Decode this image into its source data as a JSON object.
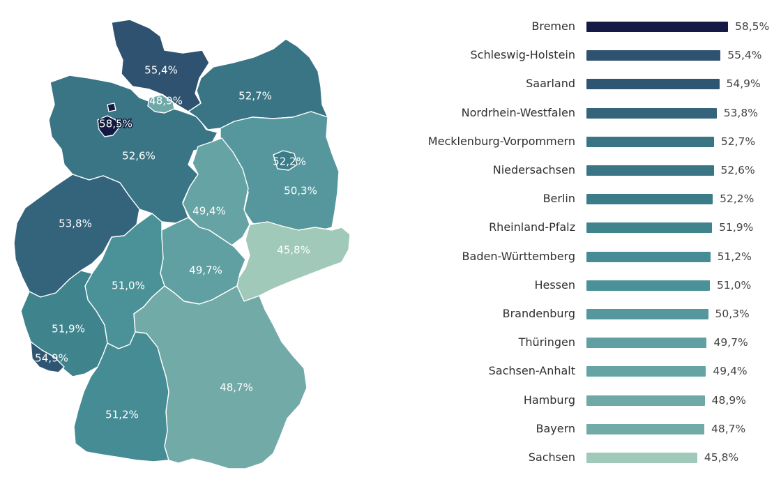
{
  "chart_data": {
    "type": "bar",
    "orientation": "horizontal",
    "categories": [
      "Bremen",
      "Schleswig-Holstein",
      "Saarland",
      "Nordrhein-Westfalen",
      "Mecklenburg-Vorpommern",
      "Niedersachsen",
      "Berlin",
      "Rheinland-Pfalz",
      "Baden-Württemberg",
      "Hessen",
      "Brandenburg",
      "Thüringen",
      "Sachsen-Anhalt",
      "Hamburg",
      "Bayern",
      "Sachsen"
    ],
    "values": [
      58.5,
      55.4,
      54.9,
      53.8,
      52.7,
      52.6,
      52.2,
      51.9,
      51.2,
      51.0,
      50.3,
      49.7,
      49.4,
      48.9,
      48.7,
      45.8
    ],
    "value_labels": [
      "58,5%",
      "55,4%",
      "54,9%",
      "53,8%",
      "52,7%",
      "52,6%",
      "52,2%",
      "51,9%",
      "51,2%",
      "51,0%",
      "50,3%",
      "49,7%",
      "49,4%",
      "48,9%",
      "48,7%",
      "45,8%"
    ],
    "colors": [
      "#141a45",
      "#2e5270",
      "#2e5672",
      "#34637c",
      "#3a7585",
      "#3a7585",
      "#3b7c89",
      "#3f838d",
      "#468c94",
      "#4a9198",
      "#55979c",
      "#60a0a2",
      "#65a3a4",
      "#6ea8a7",
      "#72aaa8",
      "#a0c9b9"
    ],
    "title": "",
    "xlabel": "",
    "ylabel": "",
    "xlim": [
      0,
      60
    ],
    "grid": false,
    "legend": "none"
  },
  "map": {
    "states": [
      {
        "name": "Schleswig-Holstein",
        "label": "55,4%",
        "color": "#2e5270"
      },
      {
        "name": "Hamburg",
        "label": "48,9%",
        "color": "#6ea8a7"
      },
      {
        "name": "Mecklenburg-Vorpommern",
        "label": "52,7%",
        "color": "#3a7585"
      },
      {
        "name": "Bremen",
        "label": "58,5%",
        "color": "#141a45"
      },
      {
        "name": "Niedersachsen",
        "label": "52,6%",
        "color": "#3a7585"
      },
      {
        "name": "Brandenburg",
        "label": "50,3%",
        "color": "#55979c"
      },
      {
        "name": "Berlin",
        "label": "52,2%",
        "color": "#3b7c89"
      },
      {
        "name": "Sachsen-Anhalt",
        "label": "49,4%",
        "color": "#65a3a4"
      },
      {
        "name": "Nordrhein-Westfalen",
        "label": "53,8%",
        "color": "#34637c"
      },
      {
        "name": "Sachsen",
        "label": "45,8%",
        "color": "#a0c9b9"
      },
      {
        "name": "Thüringen",
        "label": "49,7%",
        "color": "#60a0a2"
      },
      {
        "name": "Hessen",
        "label": "51,0%",
        "color": "#4a9198"
      },
      {
        "name": "Rheinland-Pfalz",
        "label": "51,9%",
        "color": "#3f838d"
      },
      {
        "name": "Saarland",
        "label": "54,9%",
        "color": "#2e5672"
      },
      {
        "name": "Bayern",
        "label": "48,7%",
        "color": "#72aaa8"
      },
      {
        "name": "Baden-Württemberg",
        "label": "51,2%",
        "color": "#468c94"
      }
    ]
  }
}
